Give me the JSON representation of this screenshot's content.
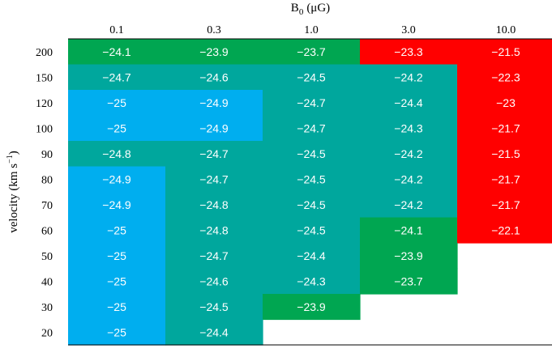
{
  "chart_data": {
    "type": "heatmap",
    "title": "",
    "xlabel": {
      "main": "B",
      "sub": "0",
      "unit": "(μG)"
    },
    "ylabel": {
      "main": "velocity (km s",
      "sup": "−1",
      "close": ")"
    },
    "x_categories": [
      "0.1",
      "0.3",
      "1.0",
      "3.0",
      "10.0"
    ],
    "y_categories": [
      "200",
      "150",
      "120",
      "100",
      "90",
      "80",
      "70",
      "60",
      "50",
      "40",
      "30",
      "20"
    ],
    "values": [
      [
        "−24.1",
        "−23.9",
        "−23.7",
        "−23.3",
        "−21.5"
      ],
      [
        "−24.7",
        "−24.6",
        "−24.5",
        "−24.2",
        "−22.3"
      ],
      [
        "−25",
        "−24.9",
        "−24.7",
        "−24.4",
        "−23"
      ],
      [
        "−25",
        "−24.9",
        "−24.7",
        "−24.3",
        "−21.7"
      ],
      [
        "−24.8",
        "−24.7",
        "−24.5",
        "−24.2",
        "−21.5"
      ],
      [
        "−24.9",
        "−24.7",
        "−24.5",
        "−24.2",
        "−21.7"
      ],
      [
        "−24.9",
        "−24.8",
        "−24.5",
        "−24.2",
        "−21.7"
      ],
      [
        "−25",
        "−24.8",
        "−24.5",
        "−24.1",
        "−22.1"
      ],
      [
        "−25",
        "−24.7",
        "−24.4",
        "−23.9",
        null
      ],
      [
        "−25",
        "−24.6",
        "−24.3",
        "−23.7",
        null
      ],
      [
        "−25",
        "−24.5",
        "−23.9",
        null,
        null
      ],
      [
        "−25",
        "−24.4",
        null,
        null,
        null
      ]
    ],
    "cell_classes": [
      [
        "green",
        "green",
        "green",
        "red",
        "red"
      ],
      [
        "teal",
        "teal",
        "teal",
        "teal",
        "red"
      ],
      [
        "blue",
        "blue",
        "teal",
        "teal",
        "red"
      ],
      [
        "blue",
        "blue",
        "teal",
        "teal",
        "red"
      ],
      [
        "teal",
        "teal",
        "teal",
        "teal",
        "red"
      ],
      [
        "blue",
        "teal",
        "teal",
        "teal",
        "red"
      ],
      [
        "blue",
        "teal",
        "teal",
        "teal",
        "red"
      ],
      [
        "blue",
        "teal",
        "teal",
        "green",
        "red"
      ],
      [
        "blue",
        "teal",
        "teal",
        "green",
        null
      ],
      [
        "blue",
        "teal",
        "teal",
        "green",
        null
      ],
      [
        "blue",
        "teal",
        "green",
        null,
        null
      ],
      [
        "blue",
        "teal",
        null,
        null,
        null
      ]
    ],
    "colors": {
      "blue": "#00aeef",
      "teal": "#00a79d",
      "green": "#00a651",
      "red": "#ff0000",
      "text": "#ffffff",
      "axis": "#000000"
    },
    "grid": false,
    "legend": "none"
  }
}
